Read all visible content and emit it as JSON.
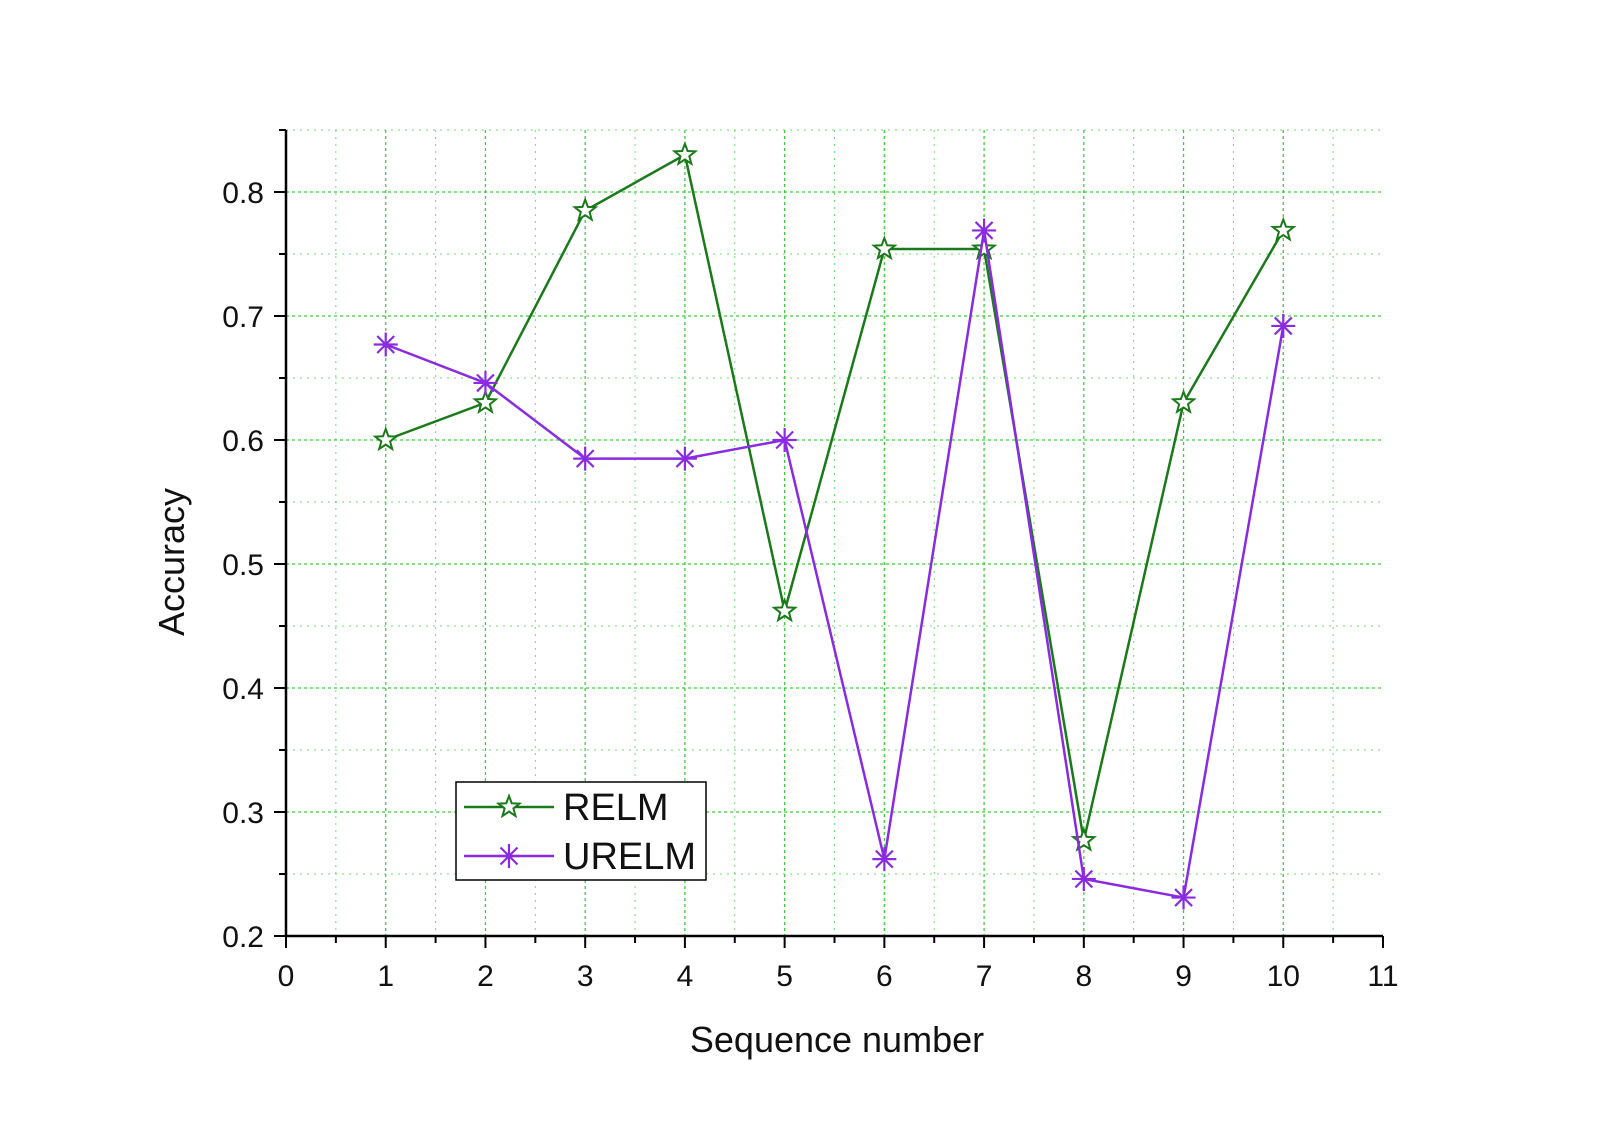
{
  "chart_data": {
    "type": "line",
    "title": "",
    "xlabel": "Sequence number",
    "ylabel": "Accuracy",
    "xlim": [
      0,
      11
    ],
    "ylim": [
      0.2,
      0.85
    ],
    "x_ticks": [
      0,
      1,
      2,
      3,
      4,
      5,
      6,
      7,
      8,
      9,
      10,
      11
    ],
    "x_tick_labels": [
      "0",
      "1",
      "2",
      "3",
      "4",
      "5",
      "6",
      "7",
      "8",
      "9",
      "10",
      "11"
    ],
    "y_ticks": [
      0.2,
      0.3,
      0.4,
      0.5,
      0.6,
      0.7,
      0.8
    ],
    "y_tick_labels": [
      "0.2",
      "0.3",
      "0.4",
      "0.5",
      "0.6",
      "0.7",
      "0.8"
    ],
    "grid": true,
    "grid_color": "#33cc33",
    "legend_position": "lower-left",
    "x": [
      1,
      2,
      3,
      4,
      5,
      6,
      7,
      8,
      9,
      10
    ],
    "series": [
      {
        "name": "RELM",
        "color": "#1a7a1a",
        "marker": "star",
        "values": [
          0.6,
          0.63,
          0.785,
          0.83,
          0.462,
          0.754,
          0.754,
          0.277,
          0.63,
          0.769
        ]
      },
      {
        "name": "URELM",
        "color": "#8a2be2",
        "marker": "asterisk",
        "values": [
          0.677,
          0.646,
          0.585,
          0.585,
          0.6,
          0.262,
          0.769,
          0.246,
          0.231,
          0.692
        ]
      }
    ]
  }
}
